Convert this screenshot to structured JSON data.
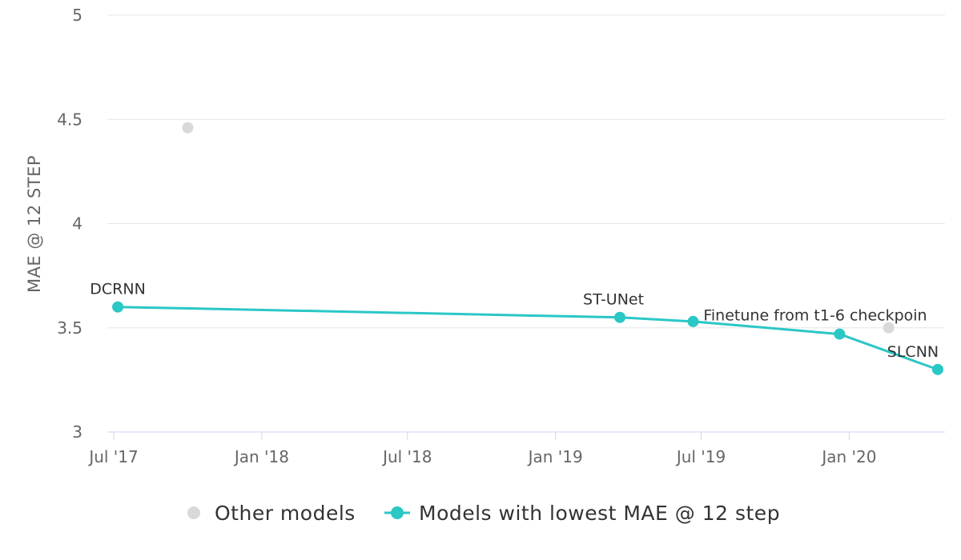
{
  "chart_data": {
    "type": "line",
    "title": "",
    "xlabel": "",
    "ylabel": "MAE @ 12 STEP",
    "ylim": [
      3,
      5
    ],
    "xlim": [
      "2017-06-23",
      "2020-04-29"
    ],
    "yticks": [
      "3",
      "3.5",
      "4",
      "4.5",
      "5"
    ],
    "xticks": [
      {
        "label": "Jul '17",
        "date": "2017-07-01"
      },
      {
        "label": "Jan '18",
        "date": "2018-01-01"
      },
      {
        "label": "Jul '18",
        "date": "2018-07-01"
      },
      {
        "label": "Jan '19",
        "date": "2019-01-01"
      },
      {
        "label": "Jul '19",
        "date": "2019-07-01"
      },
      {
        "label": "Jan '20",
        "date": "2020-01-01"
      }
    ],
    "grid": true,
    "legend_position": "bottom",
    "series": [
      {
        "name": "Other models",
        "kind": "scatter",
        "color": "#d9d9d9",
        "points": [
          {
            "x": "2017-10-01",
            "y": 4.46,
            "label": ""
          },
          {
            "x": "2020-02-19",
            "y": 3.5,
            "label": ""
          }
        ]
      },
      {
        "name": "Models with lowest MAE @ 12 step",
        "kind": "line",
        "color": "#2ac7c5",
        "points": [
          {
            "x": "2017-07-06",
            "y": 3.6,
            "label": "DCRNN"
          },
          {
            "x": "2019-03-22",
            "y": 3.55,
            "label": "ST-UNet"
          },
          {
            "x": "2019-06-21",
            "y": 3.53,
            "label": ""
          },
          {
            "x": "2019-12-20",
            "y": 3.47,
            "label": "Finetune from t1-6 checkpoin"
          },
          {
            "x": "2020-04-20",
            "y": 3.3,
            "label": "SLCNN"
          }
        ]
      }
    ]
  }
}
